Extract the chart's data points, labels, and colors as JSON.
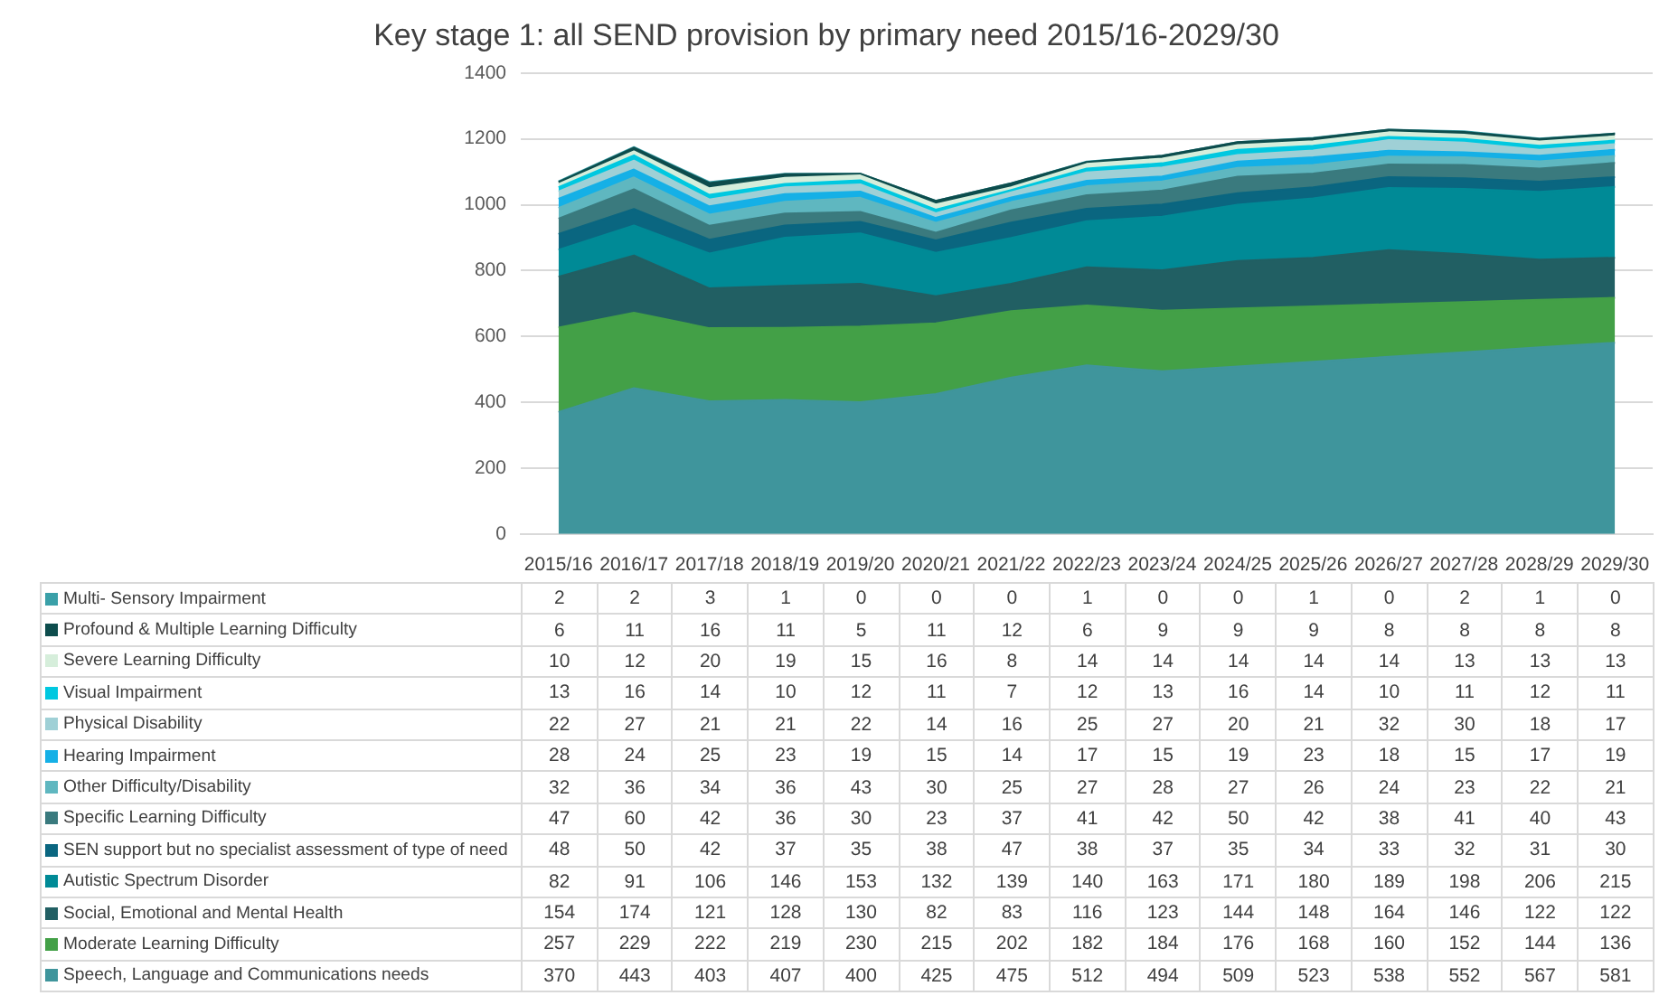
{
  "chart_data": {
    "type": "area",
    "title": "Key stage 1: all SEND provision by primary need 2015/16-2029/30",
    "categories": [
      "2015/16",
      "2016/17",
      "2017/18",
      "2018/19",
      "2019/20",
      "2020/21",
      "2021/22",
      "2022/23",
      "2023/24",
      "2024/25",
      "2025/26",
      "2026/27",
      "2027/28",
      "2028/29",
      "2029/30"
    ],
    "stacked": true,
    "ylim": [
      0,
      1400
    ],
    "yticks": [
      0,
      200,
      400,
      600,
      800,
      1000,
      1200,
      1400
    ],
    "grid": "y",
    "legend": "bottom",
    "data_labels": true,
    "series": [
      {
        "name": "Speech, Language and Communications needs",
        "color": "#3f959c",
        "values": [
          370,
          443,
          403,
          407,
          400,
          425,
          475,
          512,
          494,
          509,
          523,
          538,
          552,
          567,
          581
        ]
      },
      {
        "name": "Moderate Learning Difficulty",
        "color": "#43a047",
        "values": [
          257,
          229,
          222,
          219,
          230,
          215,
          202,
          182,
          184,
          176,
          168,
          160,
          152,
          144,
          136
        ]
      },
      {
        "name": "Social, Emotional and Mental Health",
        "color": "#215f63",
        "values": [
          154,
          174,
          121,
          128,
          130,
          82,
          83,
          116,
          123,
          144,
          148,
          164,
          146,
          122,
          122
        ]
      },
      {
        "name": "Autistic Spectrum Disorder",
        "color": "#008a96",
        "values": [
          82,
          91,
          106,
          146,
          153,
          132,
          139,
          140,
          163,
          171,
          180,
          189,
          198,
          206,
          215
        ]
      },
      {
        "name": "SEN support but no specialist assessment of type of need",
        "color": "#0a6680",
        "values": [
          48,
          50,
          42,
          37,
          35,
          38,
          47,
          38,
          37,
          35,
          34,
          33,
          32,
          31,
          30
        ]
      },
      {
        "name": "Specific Learning Difficulty",
        "color": "#3a7a7e",
        "values": [
          47,
          60,
          42,
          36,
          30,
          23,
          37,
          41,
          42,
          50,
          42,
          38,
          41,
          40,
          43
        ]
      },
      {
        "name": "Other Difficulty/Disability",
        "color": "#5fb7c0",
        "values": [
          32,
          36,
          34,
          36,
          43,
          30,
          25,
          27,
          28,
          27,
          26,
          24,
          23,
          22,
          21
        ]
      },
      {
        "name": "Hearing Impairment",
        "color": "#15b0e6",
        "values": [
          28,
          24,
          25,
          23,
          19,
          15,
          14,
          17,
          15,
          19,
          23,
          18,
          15,
          17,
          19
        ]
      },
      {
        "name": "Physical Disability",
        "color": "#9fd0d6",
        "values": [
          22,
          27,
          21,
          21,
          22,
          14,
          16,
          25,
          27,
          20,
          21,
          32,
          30,
          18,
          17
        ]
      },
      {
        "name": "Visual Impairment",
        "color": "#00c8e0",
        "values": [
          13,
          16,
          14,
          10,
          12,
          11,
          7,
          12,
          13,
          16,
          14,
          10,
          11,
          12,
          11
        ]
      },
      {
        "name": "Severe Learning Difficulty",
        "color": "#d6eedb",
        "values": [
          10,
          12,
          20,
          19,
          15,
          16,
          8,
          14,
          14,
          14,
          14,
          14,
          13,
          13,
          13
        ]
      },
      {
        "name": "Profound & Multiple Learning Difficulty",
        "color": "#0d4d4d",
        "values": [
          6,
          11,
          16,
          11,
          5,
          11,
          12,
          6,
          9,
          9,
          9,
          8,
          8,
          8,
          8
        ]
      },
      {
        "name": "Multi- Sensory Impairment",
        "color": "#3aa0a8",
        "values": [
          2,
          2,
          3,
          1,
          0,
          0,
          0,
          1,
          0,
          0,
          1,
          0,
          2,
          1,
          0
        ]
      }
    ]
  }
}
